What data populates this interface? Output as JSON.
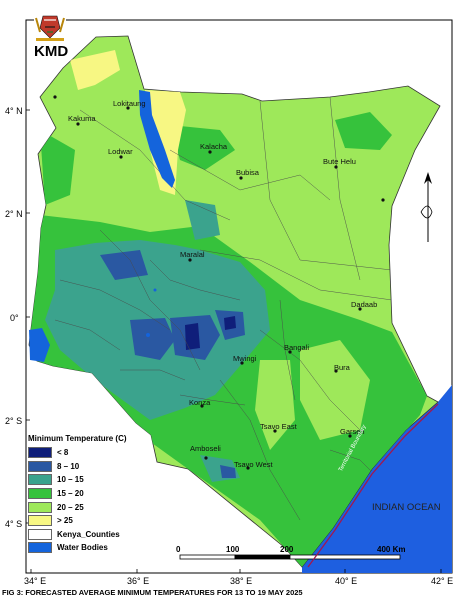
{
  "header": {
    "agency": "KMD"
  },
  "map": {
    "latitude_labels": [
      "4° N",
      "2° N",
      "0°",
      "2° S",
      "4° S"
    ],
    "longitude_labels": [
      "34° E",
      "36° E",
      "38° E",
      "40° E",
      "42° E"
    ],
    "towns_major": [
      "Lokitaung",
      "Kakuma",
      "Lodwar",
      "Kalacha",
      "Bubisa",
      "Bute Helu",
      "Maralal",
      "Dadaab",
      "Bangali",
      "Mwingi",
      "Bura",
      "Konza",
      "Tsavo East",
      "Garsen",
      "Amboseli",
      "Tsavo West"
    ],
    "ocean_label": "INDIAN OCEAN",
    "boundary_label": "Territorial Boundary",
    "colors": {
      "lt8": "#0f1e7a",
      "r8_10": "#2a58a2",
      "r10_15": "#3ba38d",
      "r15_20": "#36c23c",
      "r20_25": "#9ee85a",
      "gt25": "#f7f783",
      "water": "#1464dc",
      "ocean": "#1e5fe0"
    },
    "icons": [
      "coat-of-arms-emblem",
      "north-arrow-icon"
    ]
  },
  "legend": {
    "title": "Minimum Temperature (C)",
    "items": [
      {
        "label": "< 8",
        "color": "#0f1e7a"
      },
      {
        "label": "8 – 10",
        "color": "#2a58a2"
      },
      {
        "label": "10 – 15",
        "color": "#3ba38d"
      },
      {
        "label": "15 – 20",
        "color": "#36c23c"
      },
      {
        "label": "20 – 25",
        "color": "#9ee85a"
      },
      {
        "label": "> 25",
        "color": "#f7f783"
      },
      {
        "label": "Kenya_Counties",
        "color": "#ffffff"
      },
      {
        "label": "Water Bodies",
        "color": "#1464dc"
      }
    ]
  },
  "scale_bar": {
    "ticks": [
      "0",
      "100",
      "200",
      "400 Km"
    ]
  },
  "caption": "FIG 3: FORECASTED AVERAGE MINIMUM TEMPERATURES FOR 13 TO 19 MAY 2025"
}
